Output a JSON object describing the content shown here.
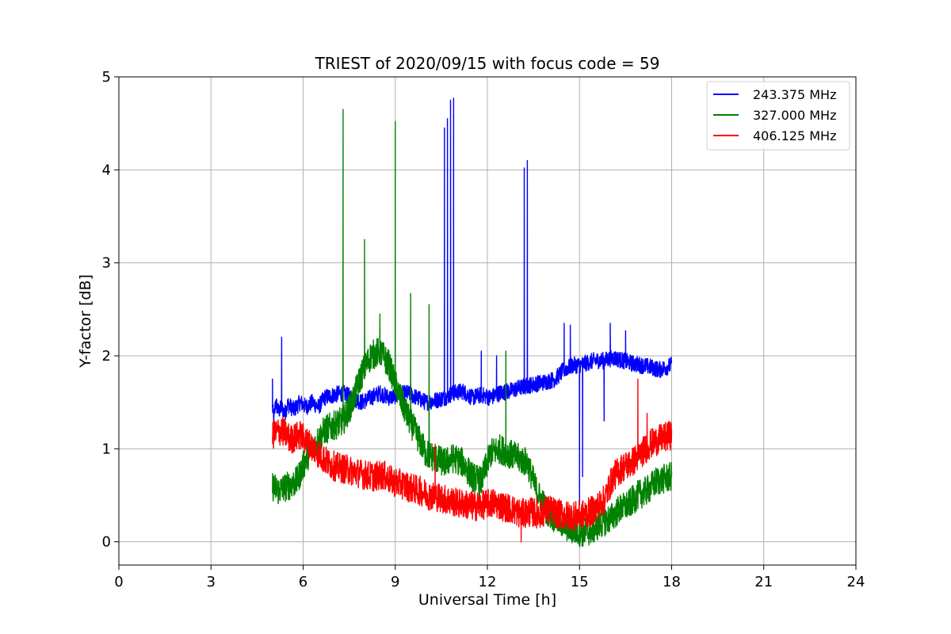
{
  "chart_data": {
    "type": "line",
    "title": "TRIEST of 2020/09/15 with focus code = 59",
    "xlabel": "Universal Time [h]",
    "ylabel": "Y-factor [dB]",
    "xlim": [
      0,
      24
    ],
    "ylim": [
      -0.25,
      5
    ],
    "xticks": [
      0,
      3,
      6,
      9,
      12,
      15,
      18,
      21,
      24
    ],
    "yticks": [
      0,
      1,
      2,
      3,
      4,
      5
    ],
    "grid": true,
    "legend_position": "top-right",
    "series": [
      {
        "name": "243.375 MHz",
        "color": "#0000ff",
        "x": [
          5.0,
          5.05,
          5.1,
          5.2,
          5.3,
          5.4,
          5.5,
          5.7,
          5.9,
          6.1,
          6.3,
          6.5,
          6.7,
          7.0,
          7.3,
          7.6,
          7.9,
          8.2,
          8.5,
          8.8,
          9.1,
          9.4,
          9.7,
          10.0,
          10.3,
          10.6,
          10.9,
          11.2,
          11.5,
          11.8,
          12.1,
          12.4,
          12.7,
          13.0,
          13.3,
          13.6,
          13.9,
          14.2,
          14.5,
          14.8,
          15.0,
          15.2,
          15.5,
          15.8,
          16.1,
          16.4,
          16.7,
          17.0,
          17.3,
          17.6,
          18.0
        ],
        "y": [
          1.45,
          1.3,
          1.5,
          1.4,
          1.45,
          1.38,
          1.48,
          1.42,
          1.5,
          1.45,
          1.5,
          1.45,
          1.55,
          1.58,
          1.6,
          1.55,
          1.5,
          1.55,
          1.6,
          1.55,
          1.58,
          1.6,
          1.55,
          1.5,
          1.52,
          1.55,
          1.6,
          1.62,
          1.55,
          1.58,
          1.55,
          1.6,
          1.62,
          1.65,
          1.68,
          1.7,
          1.72,
          1.75,
          1.85,
          1.9,
          1.9,
          1.92,
          1.95,
          1.95,
          1.98,
          1.95,
          1.92,
          1.9,
          1.88,
          1.85,
          1.9
        ],
        "spikes": [
          [
            5.3,
            2.2
          ],
          [
            5.0,
            1.75
          ],
          [
            10.6,
            4.45
          ],
          [
            10.7,
            4.55
          ],
          [
            10.8,
            4.75
          ],
          [
            10.9,
            4.77
          ],
          [
            13.2,
            4.02
          ],
          [
            13.3,
            4.1
          ],
          [
            11.8,
            2.05
          ],
          [
            12.3,
            2.0
          ],
          [
            14.5,
            2.35
          ],
          [
            14.7,
            2.33
          ],
          [
            16.0,
            2.35
          ],
          [
            16.5,
            2.27
          ]
        ],
        "dips": [
          [
            15.0,
            0.4
          ],
          [
            15.1,
            0.7
          ],
          [
            15.8,
            1.3
          ]
        ]
      },
      {
        "name": "327.000 MHz",
        "color": "#008000",
        "x": [
          5.0,
          5.2,
          5.5,
          5.8,
          6.1,
          6.4,
          6.7,
          7.0,
          7.3,
          7.6,
          7.9,
          8.2,
          8.5,
          8.8,
          9.1,
          9.4,
          9.7,
          10.0,
          10.3,
          10.6,
          10.9,
          11.2,
          11.5,
          11.8,
          12.1,
          12.4,
          12.7,
          13.0,
          13.3,
          13.6,
          13.9,
          14.2,
          14.5,
          14.8,
          15.1,
          15.4,
          15.7,
          16.0,
          16.3,
          16.6,
          16.9,
          17.2,
          17.5,
          18.0
        ],
        "y": [
          0.6,
          0.55,
          0.6,
          0.65,
          0.9,
          1.05,
          1.2,
          1.25,
          1.3,
          1.5,
          1.8,
          2.0,
          2.05,
          1.9,
          1.6,
          1.35,
          1.15,
          0.95,
          0.9,
          0.85,
          0.9,
          0.85,
          0.7,
          0.65,
          0.95,
          1.0,
          0.95,
          0.9,
          0.85,
          0.55,
          0.35,
          0.25,
          0.18,
          0.12,
          0.1,
          0.12,
          0.2,
          0.25,
          0.35,
          0.4,
          0.5,
          0.55,
          0.65,
          0.7
        ],
        "spikes": [
          [
            7.3,
            4.65
          ],
          [
            8.0,
            3.25
          ],
          [
            9.0,
            4.52
          ],
          [
            9.5,
            2.67
          ],
          [
            10.1,
            2.55
          ],
          [
            12.6,
            2.05
          ],
          [
            8.5,
            2.45
          ]
        ],
        "dips": []
      },
      {
        "name": "406.125 MHz",
        "color": "#ff0000",
        "x": [
          5.0,
          5.3,
          5.6,
          5.9,
          6.2,
          6.5,
          6.8,
          7.1,
          7.4,
          7.7,
          8.0,
          8.3,
          8.6,
          8.9,
          9.2,
          9.5,
          9.8,
          10.1,
          10.4,
          10.7,
          11.0,
          11.3,
          11.6,
          11.9,
          12.2,
          12.5,
          12.8,
          13.1,
          13.4,
          13.7,
          14.0,
          14.3,
          14.6,
          14.9,
          15.2,
          15.5,
          15.8,
          16.1,
          16.4,
          16.7,
          17.0,
          17.3,
          17.6,
          18.0
        ],
        "y": [
          1.15,
          1.2,
          1.1,
          1.15,
          1.05,
          0.95,
          0.85,
          0.8,
          0.78,
          0.75,
          0.72,
          0.7,
          0.72,
          0.65,
          0.62,
          0.58,
          0.55,
          0.5,
          0.48,
          0.45,
          0.42,
          0.4,
          0.38,
          0.4,
          0.42,
          0.38,
          0.35,
          0.3,
          0.32,
          0.3,
          0.35,
          0.3,
          0.28,
          0.28,
          0.3,
          0.35,
          0.45,
          0.7,
          0.8,
          0.85,
          0.95,
          1.05,
          1.1,
          1.15
        ],
        "spikes": [
          [
            16.9,
            1.75
          ],
          [
            17.2,
            1.38
          ],
          [
            10.3,
            1.05
          ]
        ],
        "dips": [
          [
            13.1,
            0.0
          ]
        ]
      }
    ]
  }
}
